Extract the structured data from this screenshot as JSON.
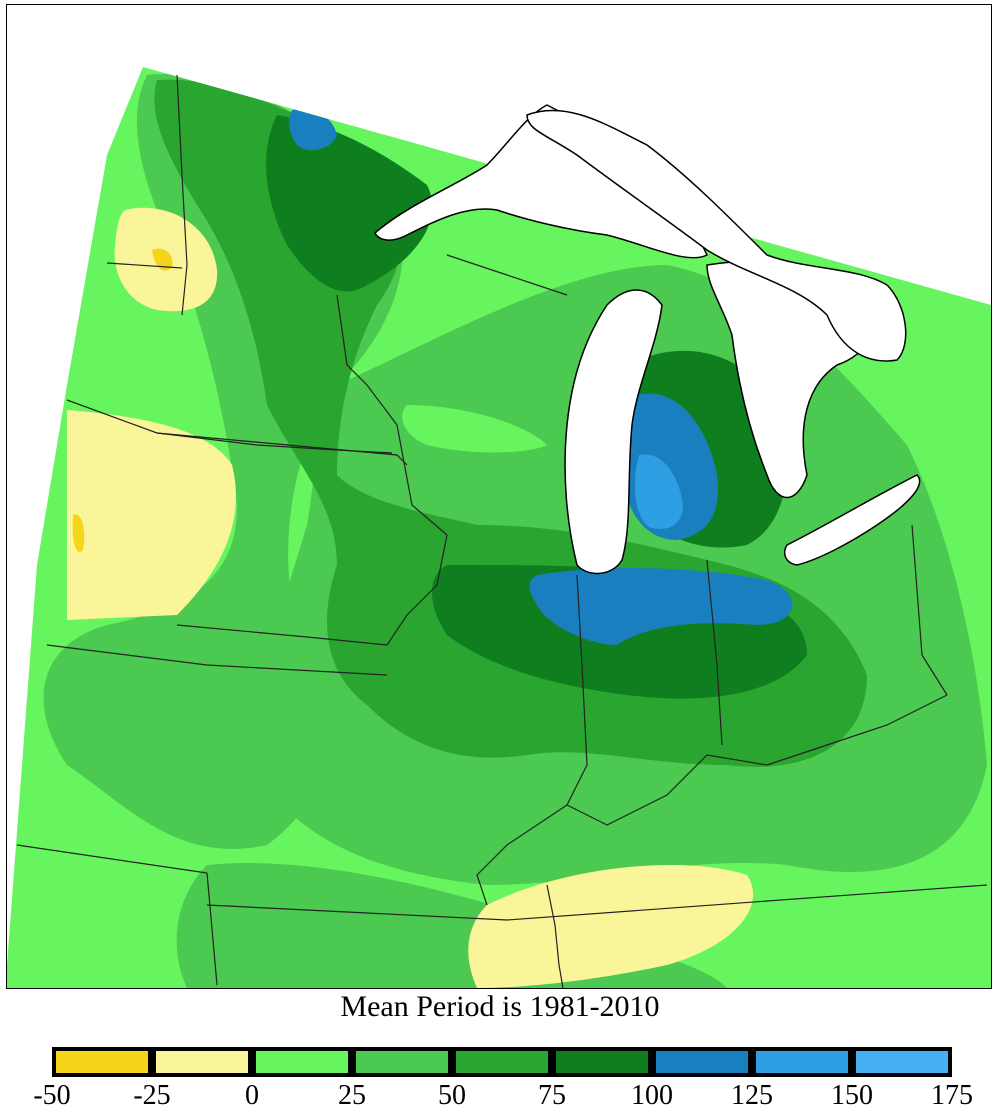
{
  "caption": "Mean Period is 1981-2010",
  "colors": {
    "lake": "#ffffff",
    "outline": "#000000",
    "boundary": "#333333"
  },
  "legend": {
    "bins": [
      {
        "low": -50,
        "high": -25,
        "color": "#f5d51c"
      },
      {
        "low": -25,
        "high": 0,
        "color": "#fbf59a"
      },
      {
        "low": 0,
        "high": 25,
        "color": "#66f55e"
      },
      {
        "low": 25,
        "high": 50,
        "color": "#4cc950"
      },
      {
        "low": 50,
        "high": 75,
        "color": "#2aa52f"
      },
      {
        "low": 75,
        "high": 100,
        "color": "#0f7e1e"
      },
      {
        "low": 100,
        "high": 125,
        "color": "#1a7fbe"
      },
      {
        "low": 125,
        "high": 150,
        "color": "#2e9fe3"
      },
      {
        "low": 150,
        "high": 175,
        "color": "#45b1f3"
      }
    ],
    "ticks": [
      "-50",
      "-25",
      "0",
      "25",
      "50",
      "75",
      "100",
      "125",
      "150",
      "175"
    ]
  }
}
